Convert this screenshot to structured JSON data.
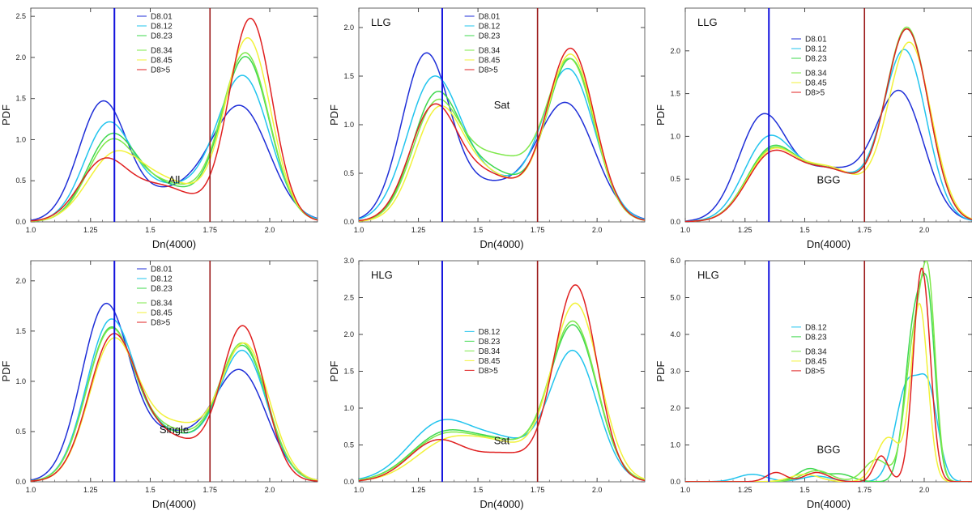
{
  "figure": {
    "x_tick_labels": [
      "1.0",
      "1.25",
      "1.5",
      "1.75",
      "2.0"
    ],
    "colors": {
      "D8.01": "#1f2fd8",
      "D8.12": "#22c4ee",
      "D8.23": "#3ed84e",
      "D8.34": "#7ee84a",
      "D8.45": "#f2f23a",
      "D8>5": "#e02020",
      "blue_line": "#1010dd",
      "red_line": "#9b1a1a"
    }
  },
  "chart_data": [
    {
      "type": "line",
      "panel": "top-left",
      "label": "All",
      "label_loc": "center",
      "xlabel": "Dn(4000)",
      "ylabel": "PDF",
      "xlim": [
        1.0,
        2.2
      ],
      "ylim": [
        0,
        2.6
      ],
      "xticks": [
        1.0,
        1.25,
        1.5,
        1.75,
        2.0
      ],
      "yticks": [
        0,
        0.5,
        1.0,
        1.5,
        2.0,
        2.5
      ],
      "ytick_labels": [
        "0.0",
        "0.5",
        "1.0",
        "1.5",
        "2.0",
        "2.5"
      ],
      "vlines": [
        1.35,
        1.75
      ],
      "legend_split": 3,
      "series": [
        {
          "name": "D8.01",
          "comps": [
            [
              1.3,
              0.1,
              1.42
            ],
            [
              1.6,
              0.15,
              0.35
            ],
            [
              1.88,
              0.12,
              1.35
            ]
          ]
        },
        {
          "name": "D8.12",
          "comps": [
            [
              1.32,
              0.1,
              1.12
            ],
            [
              1.58,
              0.15,
              0.4
            ],
            [
              1.89,
              0.11,
              1.73
            ]
          ]
        },
        {
          "name": "D8.23",
          "comps": [
            [
              1.33,
              0.1,
              0.92
            ],
            [
              1.55,
              0.15,
              0.42
            ],
            [
              1.9,
              0.1,
              1.98
            ]
          ]
        },
        {
          "name": "D8.34",
          "comps": [
            [
              1.33,
              0.1,
              0.86
            ],
            [
              1.56,
              0.15,
              0.44
            ],
            [
              1.9,
              0.1,
              2.02
            ]
          ]
        },
        {
          "name": "D8.45",
          "comps": [
            [
              1.34,
              0.11,
              0.7
            ],
            [
              1.57,
              0.15,
              0.46
            ],
            [
              1.91,
              0.095,
              2.2
            ]
          ]
        },
        {
          "name": "D8>5",
          "comps": [
            [
              1.3,
              0.1,
              0.68
            ],
            [
              1.55,
              0.14,
              0.42
            ],
            [
              1.92,
              0.09,
              2.46
            ]
          ]
        }
      ]
    },
    {
      "type": "line",
      "panel": "top-middle",
      "label": "Sat",
      "label_loc": "center",
      "corner_label": "LLG",
      "xlabel": "Dn(4000)",
      "ylabel": "PDF",
      "xlim": [
        1.0,
        2.2
      ],
      "ylim": [
        0,
        2.2
      ],
      "xticks": [
        1.0,
        1.25,
        1.5,
        1.75,
        2.0
      ],
      "yticks": [
        0,
        0.5,
        1.0,
        1.5,
        2.0
      ],
      "ytick_labels": [
        "0.0",
        "0.5",
        "1.0",
        "1.5",
        "2.0"
      ],
      "vlines": [
        1.35,
        1.75
      ],
      "legend_split": 3,
      "series": [
        {
          "name": "D8.01",
          "comps": [
            [
              1.28,
              0.1,
              1.68
            ],
            [
              1.55,
              0.14,
              0.35
            ],
            [
              1.87,
              0.12,
              1.2
            ]
          ]
        },
        {
          "name": "D8.12",
          "comps": [
            [
              1.31,
              0.11,
              1.4
            ],
            [
              1.55,
              0.14,
              0.4
            ],
            [
              1.88,
              0.11,
              1.55
            ]
          ]
        },
        {
          "name": "D8.23",
          "comps": [
            [
              1.32,
              0.1,
              1.2
            ],
            [
              1.55,
              0.14,
              0.5
            ],
            [
              1.89,
              0.1,
              1.65
            ]
          ]
        },
        {
          "name": "D8.34",
          "comps": [
            [
              1.32,
              0.1,
              1.1
            ],
            [
              1.58,
              0.15,
              0.65
            ],
            [
              1.89,
              0.1,
              1.6
            ]
          ]
        },
        {
          "name": "D8.45",
          "comps": [
            [
              1.33,
              0.1,
              1.05
            ],
            [
              1.55,
              0.14,
              0.45
            ],
            [
              1.89,
              0.1,
              1.7
            ]
          ]
        },
        {
          "name": "D8>5",
          "comps": [
            [
              1.31,
              0.1,
              1.1
            ],
            [
              1.55,
              0.14,
              0.45
            ],
            [
              1.89,
              0.1,
              1.76
            ]
          ]
        }
      ]
    },
    {
      "type": "line",
      "panel": "top-right",
      "label": "BGG",
      "label_loc": "center",
      "corner_label": "LLG",
      "xlabel": "Dn(4000)",
      "ylabel": "PDF",
      "xlim": [
        1.0,
        2.2
      ],
      "ylim": [
        0,
        2.5
      ],
      "xticks": [
        1.0,
        1.25,
        1.5,
        1.75,
        2.0
      ],
      "yticks": [
        0,
        0.5,
        1.0,
        1.5,
        2.0
      ],
      "ytick_labels": [
        "0.0",
        "0.5",
        "1.0",
        "1.5",
        "2.0"
      ],
      "vlines": [
        1.35,
        1.75
      ],
      "legend_split": 3,
      "series": [
        {
          "name": "D8.01",
          "comps": [
            [
              1.32,
              0.1,
              1.15
            ],
            [
              1.6,
              0.15,
              0.6
            ],
            [
              1.9,
              0.1,
              1.45
            ]
          ]
        },
        {
          "name": "D8.12",
          "comps": [
            [
              1.34,
              0.1,
              0.86
            ],
            [
              1.6,
              0.15,
              0.6
            ],
            [
              1.92,
              0.09,
              1.95
            ]
          ]
        },
        {
          "name": "D8.23",
          "comps": [
            [
              1.35,
              0.1,
              0.72
            ],
            [
              1.6,
              0.15,
              0.6
            ],
            [
              1.93,
              0.09,
              2.2
            ]
          ]
        },
        {
          "name": "D8.34",
          "comps": [
            [
              1.35,
              0.1,
              0.7
            ],
            [
              1.6,
              0.15,
              0.6
            ],
            [
              1.93,
              0.09,
              2.22
            ]
          ]
        },
        {
          "name": "D8.45",
          "comps": [
            [
              1.35,
              0.1,
              0.68
            ],
            [
              1.6,
              0.15,
              0.62
            ],
            [
              1.94,
              0.09,
              2.05
            ]
          ]
        },
        {
          "name": "D8>5",
          "comps": [
            [
              1.35,
              0.1,
              0.66
            ],
            [
              1.6,
              0.15,
              0.6
            ],
            [
              1.93,
              0.09,
              2.2
            ]
          ]
        }
      ]
    },
    {
      "type": "line",
      "panel": "bottom-left",
      "label": "Single",
      "label_loc": "center",
      "xlabel": "Dn(4000)",
      "ylabel": "PDF",
      "xlim": [
        1.0,
        2.2
      ],
      "ylim": [
        0,
        2.2
      ],
      "xticks": [
        1.0,
        1.25,
        1.5,
        1.75,
        2.0
      ],
      "yticks": [
        0,
        0.5,
        1.0,
        1.5,
        2.0
      ],
      "ytick_labels": [
        "0.0",
        "0.5",
        "1.0",
        "1.5",
        "2.0"
      ],
      "vlines": [
        1.35,
        1.75
      ],
      "legend_split": 3,
      "series": [
        {
          "name": "D8.01",
          "comps": [
            [
              1.31,
              0.1,
              1.68
            ],
            [
              1.58,
              0.15,
              0.45
            ],
            [
              1.88,
              0.11,
              1.05
            ]
          ]
        },
        {
          "name": "D8.12",
          "comps": [
            [
              1.33,
              0.1,
              1.5
            ],
            [
              1.58,
              0.15,
              0.45
            ],
            [
              1.89,
              0.1,
              1.25
            ]
          ]
        },
        {
          "name": "D8.23",
          "comps": [
            [
              1.33,
              0.1,
              1.42
            ],
            [
              1.58,
              0.15,
              0.45
            ],
            [
              1.89,
              0.1,
              1.3
            ]
          ]
        },
        {
          "name": "D8.34",
          "comps": [
            [
              1.33,
              0.1,
              1.4
            ],
            [
              1.58,
              0.15,
              0.48
            ],
            [
              1.89,
              0.1,
              1.32
            ]
          ]
        },
        {
          "name": "D8.45",
          "comps": [
            [
              1.34,
              0.1,
              1.3
            ],
            [
              1.6,
              0.15,
              0.55
            ],
            [
              1.9,
              0.1,
              1.3
            ]
          ]
        },
        {
          "name": "D8>5",
          "comps": [
            [
              1.34,
              0.1,
              1.35
            ],
            [
              1.58,
              0.15,
              0.42
            ],
            [
              1.89,
              0.09,
              1.5
            ]
          ]
        }
      ]
    },
    {
      "type": "line",
      "panel": "bottom-middle",
      "label": "Sat",
      "label_loc": "low",
      "corner_label": "HLG",
      "xlabel": "Dn(4000)",
      "ylabel": "PDF",
      "xlim": [
        1.0,
        2.2
      ],
      "ylim": [
        0,
        3.0
      ],
      "xticks": [
        1.0,
        1.25,
        1.5,
        1.75,
        2.0
      ],
      "yticks": [
        0,
        0.5,
        1.0,
        1.5,
        2.0,
        2.5,
        3.0
      ],
      "ytick_labels": [
        "0.0",
        "0.5",
        "1.0",
        "1.5",
        "2.0",
        "2.5",
        "3.0"
      ],
      "vlines": [
        1.35,
        1.75
      ],
      "legend_split": 99,
      "series": [
        {
          "name": "D8.12",
          "comps": [
            [
              1.35,
              0.14,
              0.8
            ],
            [
              1.62,
              0.12,
              0.45
            ],
            [
              1.9,
              0.1,
              1.75
            ]
          ]
        },
        {
          "name": "D8.23",
          "comps": [
            [
              1.36,
              0.14,
              0.65
            ],
            [
              1.62,
              0.12,
              0.42
            ],
            [
              1.9,
              0.1,
              2.1
            ]
          ]
        },
        {
          "name": "D8.34",
          "comps": [
            [
              1.36,
              0.14,
              0.62
            ],
            [
              1.62,
              0.12,
              0.42
            ],
            [
              1.9,
              0.1,
              2.15
            ]
          ]
        },
        {
          "name": "D8.45",
          "comps": [
            [
              1.38,
              0.14,
              0.55
            ],
            [
              1.62,
              0.12,
              0.38
            ],
            [
              1.91,
              0.1,
              2.4
            ]
          ]
        },
        {
          "name": "D8>5",
          "comps": [
            [
              1.33,
              0.12,
              0.55
            ],
            [
              1.62,
              0.12,
              0.35
            ],
            [
              1.91,
              0.09,
              2.65
            ]
          ]
        }
      ]
    },
    {
      "type": "line",
      "panel": "bottom-right",
      "label": "BGG",
      "label_loc": "low",
      "corner_label": "HLG",
      "xlabel": "Dn(4000)",
      "ylabel": "PDF",
      "xlim": [
        1.0,
        2.2
      ],
      "ylim": [
        0,
        6.0
      ],
      "xticks": [
        1.0,
        1.25,
        1.5,
        1.75,
        2.0
      ],
      "yticks": [
        0,
        1.0,
        2.0,
        3.0,
        4.0,
        5.0,
        6.0
      ],
      "ytick_labels": [
        "0.0",
        "1.0",
        "2.0",
        "3.0",
        "4.0",
        "5.0",
        "6.0"
      ],
      "vlines": [
        1.35,
        1.75
      ],
      "legend_split": 2,
      "series": [
        {
          "name": "D8.12",
          "comps": [
            [
              1.28,
              0.06,
              0.2
            ],
            [
              1.55,
              0.06,
              0.15
            ],
            [
              1.93,
              0.05,
              2.6
            ],
            [
              2.02,
              0.04,
              2.2
            ]
          ]
        },
        {
          "name": "D8.23",
          "comps": [
            [
              1.52,
              0.05,
              0.35
            ],
            [
              1.65,
              0.05,
              0.2
            ],
            [
              1.96,
              0.04,
              4.3
            ],
            [
              2.02,
              0.03,
              3.8
            ]
          ]
        },
        {
          "name": "D8.34",
          "comps": [
            [
              1.55,
              0.06,
              0.3
            ],
            [
              1.8,
              0.05,
              0.6
            ],
            [
              1.96,
              0.04,
              3.8
            ],
            [
              2.02,
              0.03,
              4.5
            ]
          ]
        },
        {
          "name": "D8.45",
          "comps": [
            [
              1.5,
              0.06,
              0.2
            ],
            [
              1.85,
              0.05,
              1.2
            ],
            [
              1.98,
              0.035,
              4.8
            ]
          ]
        },
        {
          "name": "D8>5",
          "comps": [
            [
              1.38,
              0.04,
              0.25
            ],
            [
              1.55,
              0.05,
              0.25
            ],
            [
              1.82,
              0.03,
              0.7
            ],
            [
              1.99,
              0.035,
              5.8
            ]
          ]
        }
      ]
    }
  ]
}
